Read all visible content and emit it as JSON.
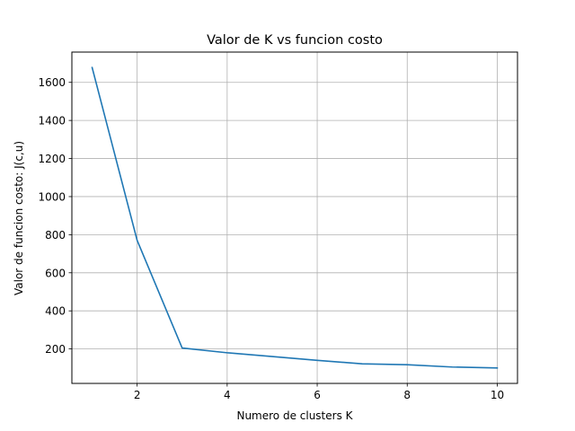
{
  "chart_data": {
    "type": "line",
    "title": "Valor de K vs funcion costo",
    "xlabel": "Numero de clusters K",
    "ylabel": "Valor de funcion costo: J(c,u)",
    "xlim": [
      0.55,
      10.45
    ],
    "ylim": [
      19,
      1759
    ],
    "xticks": [
      2,
      4,
      6,
      8,
      10
    ],
    "yticks": [
      200,
      400,
      600,
      800,
      1000,
      1200,
      1400,
      1600
    ],
    "grid": true,
    "series": [
      {
        "x": [
          1,
          2,
          3,
          4,
          5,
          6,
          7,
          8,
          9,
          10
        ],
        "y": [
          1678,
          770,
          205,
          180,
          160,
          140,
          122,
          117,
          105,
          100
        ],
        "color": "#1f77b4"
      }
    ]
  }
}
